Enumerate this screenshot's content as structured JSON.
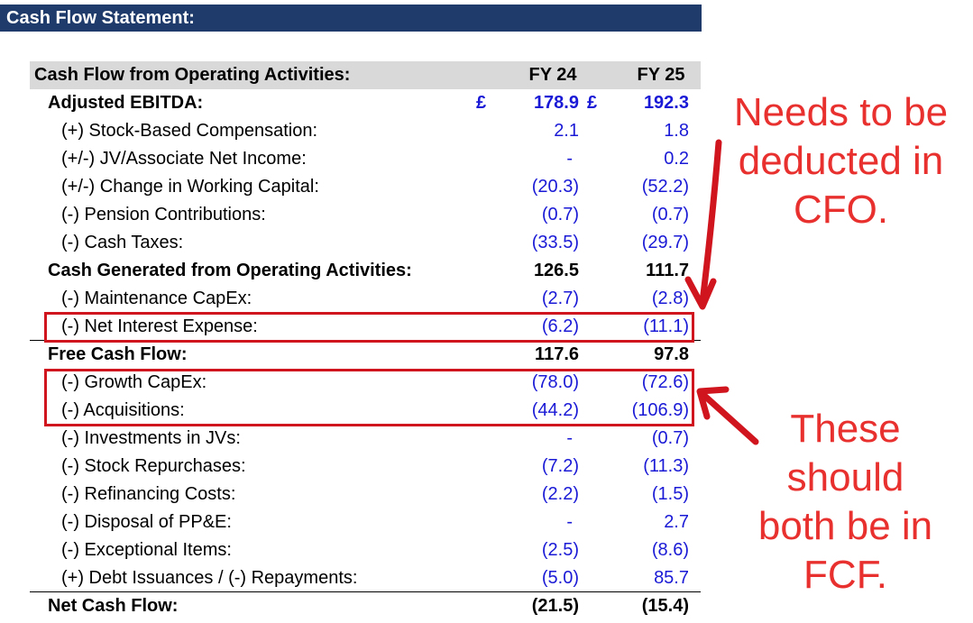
{
  "title": "Cash Flow Statement:",
  "section": {
    "label": "Cash Flow from Operating Activities:",
    "col1": "FY 24",
    "col2": "FY 25"
  },
  "rows": [
    {
      "label": "Adjusted EBITDA:",
      "fy24": "178.9",
      "fy25": "192.3",
      "currency": "£",
      "style": "bold-blue"
    },
    {
      "label": "(+) Stock-Based Compensation:",
      "fy24": "2.1",
      "fy25": "1.8"
    },
    {
      "label": "(+/-) JV/Associate Net Income:",
      "fy24": "-",
      "fy25": "0.2"
    },
    {
      "label": "(+/-) Change in Working Capital:",
      "fy24": "(20.3)",
      "fy25": "(52.2)"
    },
    {
      "label": "(-) Pension Contributions:",
      "fy24": "(0.7)",
      "fy25": "(0.7)"
    },
    {
      "label": "(-) Cash Taxes:",
      "fy24": "(33.5)",
      "fy25": "(29.7)"
    },
    {
      "label": "Cash Generated from Operating Activities:",
      "fy24": "126.5",
      "fy25": "111.7",
      "style": "bold"
    },
    {
      "label": "(-) Maintenance CapEx:",
      "fy24": "(2.7)",
      "fy25": "(2.8)"
    },
    {
      "label": "(-) Net Interest Expense:",
      "fy24": "(6.2)",
      "fy25": "(11.1)"
    },
    {
      "label": "Free Cash Flow:",
      "fy24": "117.6",
      "fy25": "97.8",
      "style": "bold"
    },
    {
      "label": "(-) Growth CapEx:",
      "fy24": "(78.0)",
      "fy25": "(72.6)"
    },
    {
      "label": "(-) Acquisitions:",
      "fy24": "(44.2)",
      "fy25": "(106.9)"
    },
    {
      "label": "(-) Investments in JVs:",
      "fy24": "-",
      "fy25": "(0.7)"
    },
    {
      "label": "(-) Stock Repurchases:",
      "fy24": "(7.2)",
      "fy25": "(11.3)"
    },
    {
      "label": "(-) Refinancing Costs:",
      "fy24": "(2.2)",
      "fy25": "(1.5)"
    },
    {
      "label": "(-) Disposal of PP&E:",
      "fy24": "-",
      "fy25": "2.7"
    },
    {
      "label": "(-) Exceptional Items:",
      "fy24": "(2.5)",
      "fy25": "(8.6)"
    },
    {
      "label": "(+) Debt Issuances / (-) Repayments:",
      "fy24": "(5.0)",
      "fy25": "85.7"
    },
    {
      "label": "Net Cash Flow:",
      "fy24": "(21.5)",
      "fy25": "(15.4)",
      "style": "bold"
    }
  ],
  "annotations": {
    "top": [
      "Needs to be",
      "deducted in",
      "CFO."
    ],
    "bottom": [
      "These",
      "should",
      "both be in",
      "FCF."
    ]
  },
  "colors": {
    "header_bg": "#1f3b6b",
    "section_bg": "#d9d9d9",
    "input_blue": "#1a1ad6",
    "annotation_red": "#e8312f",
    "box_red": "#d0151f"
  }
}
